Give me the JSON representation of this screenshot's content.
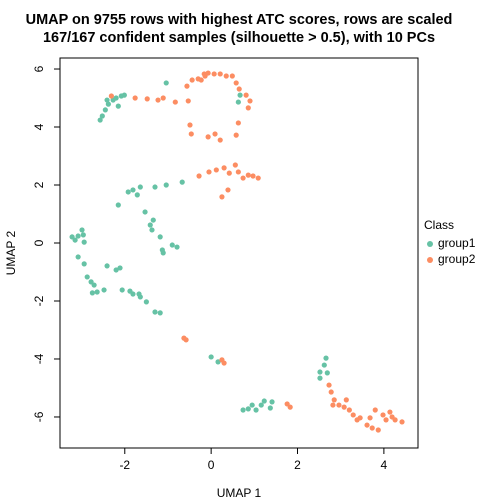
{
  "chart_data": {
    "type": "scatter",
    "title": [
      "UMAP on 9755 rows with highest ATC scores, rows are scaled",
      "167/167 confident samples (silhouette > 0.5), with 10 PCs"
    ],
    "x_label": "UMAP 1",
    "y_label": "UMAP 2",
    "xlim": [
      -3.5,
      4.79
    ],
    "ylim": [
      -7.07,
      6.38
    ],
    "xticks": [
      -2,
      0,
      2,
      4
    ],
    "yticks": [
      -6,
      -4,
      -2,
      0,
      2,
      4,
      6
    ],
    "legend_title": "Class",
    "legend_position": "right",
    "series": [
      {
        "name": "group1",
        "color": "#66C2A5",
        "x": [
          -1.04,
          -2.57,
          -2.52,
          -2.45,
          -2.38,
          -2.27,
          -2.15,
          -2.2,
          -2.08,
          -2.01,
          -2.41,
          0.63,
          0.67,
          -0.67,
          -1.04,
          -1.3,
          -1.64,
          -1.81,
          -1.92,
          -2.15,
          -1.71,
          -1.53,
          -1.41,
          -1.37,
          -1.18,
          -0.9,
          -0.79,
          -1.13,
          -1.11,
          -1.34,
          -3.22,
          -3.15,
          -3.08,
          -2.96,
          -2.99,
          -2.94,
          -3.08,
          -2.94,
          -2.87,
          -2.78,
          -2.71,
          -2.64,
          -2.75,
          -2.48,
          -2.41,
          -2.2,
          -2.11,
          -2.06,
          -1.88,
          -1.81,
          -1.67,
          -1.64,
          -1.5,
          -1.3,
          -1.18,
          0,
          0.16,
          0.74,
          0.86,
          0.95,
          1.04,
          1.16,
          1.23,
          1.37,
          1.41,
          2.66,
          2.62,
          2.52,
          2.52,
          2.69
        ],
        "y": [
          5.52,
          4.24,
          4.38,
          4.59,
          4.79,
          4.93,
          4.72,
          5.0,
          5.07,
          5.1,
          4.93,
          4.86,
          5.1,
          2.1,
          2.0,
          1.93,
          1.93,
          1.83,
          1.76,
          1.31,
          1.66,
          1.07,
          0.62,
          0.45,
          0.21,
          -0.07,
          -0.14,
          -0.24,
          -0.34,
          0.79,
          0.21,
          0.1,
          0.24,
          0.28,
          0.45,
          0.03,
          -0.48,
          -0.72,
          -1.17,
          -1.34,
          -1.45,
          -1.69,
          -1.72,
          -1.62,
          -0.79,
          -0.93,
          -0.86,
          -1.62,
          -1.66,
          -1.76,
          -1.76,
          -1.86,
          -2.03,
          -2.38,
          -2.41,
          -3.93,
          -4.1,
          -5.76,
          -5.72,
          -5.59,
          -5.76,
          -5.59,
          -5.45,
          -5.69,
          -5.48,
          -3.97,
          -4.21,
          -4.45,
          -4.66,
          -4.48
        ]
      },
      {
        "name": "group2",
        "color": "#FC8D62",
        "x": [
          -2.31,
          -1.76,
          -1.48,
          -1.23,
          -1.11,
          -0.83,
          -0.53,
          -0.56,
          -0.44,
          -0.3,
          -0.16,
          -0.07,
          0.07,
          0.21,
          0.35,
          0.49,
          0.58,
          0.65,
          0.81,
          0.9,
          0.86,
          -0.23,
          -0.49,
          -0.46,
          -0.07,
          0.09,
          0.21,
          0.63,
          0.58,
          -0.14,
          -0.28,
          -0.05,
          0.12,
          0.3,
          0.42,
          0.56,
          0.63,
          0.74,
          0.86,
          0.97,
          1.09,
          0.25,
          0.39,
          -0.63,
          -0.58,
          0.25,
          0.3,
          1.76,
          1.83,
          2.73,
          2.78,
          2.85,
          2.82,
          2.96,
          3.08,
          3.13,
          3.2,
          3.29,
          3.38,
          3.45,
          3.61,
          3.73,
          3.87,
          3.8,
          3.98,
          4.14,
          4.19,
          4.26,
          4.42,
          4.05,
          3.68
        ],
        "y": [
          5.07,
          5.0,
          4.97,
          4.93,
          5.0,
          4.86,
          4.9,
          5.41,
          5.62,
          5.66,
          5.83,
          5.86,
          5.83,
          5.83,
          5.76,
          5.76,
          5.52,
          5.31,
          5.1,
          4.9,
          4.66,
          5.62,
          4.07,
          3.76,
          3.66,
          3.76,
          3.55,
          4.14,
          3.72,
          5.76,
          2.31,
          2.45,
          2.52,
          2.59,
          2.41,
          2.69,
          2.45,
          2.24,
          2.34,
          2.31,
          2.24,
          1.59,
          1.83,
          -3.28,
          -3.34,
          -4.03,
          -4.14,
          -5.55,
          -5.66,
          -4.9,
          -5.14,
          -5.41,
          -5.59,
          -5.59,
          -5.66,
          -5.41,
          -5.76,
          -5.93,
          -6.1,
          -6.03,
          -6.28,
          -6.38,
          -6.45,
          -5.76,
          -5.93,
          -5.83,
          -6.0,
          -6.1,
          -6.17,
          -6.1,
          -6.03
        ]
      }
    ]
  }
}
